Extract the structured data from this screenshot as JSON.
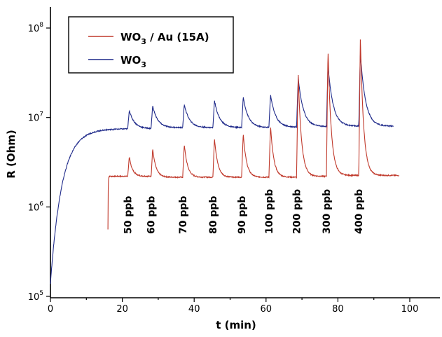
{
  "chart_data": {
    "type": "line",
    "xlabel": "t (min)",
    "ylabel": "R (Ohm)",
    "xlim": [
      0,
      110
    ],
    "ylim": [
      100000,
      600000000
    ],
    "yscale": "log",
    "x_ticks": [
      0,
      20,
      40,
      60,
      80,
      100
    ],
    "y_ticks": [
      {
        "value": 100000,
        "base": "10",
        "exp": "5"
      },
      {
        "value": 1000000,
        "base": "10",
        "exp": "6"
      },
      {
        "value": 10000000,
        "base": "10",
        "exp": "7"
      },
      {
        "value": 100000000,
        "base": "10",
        "exp": "8"
      }
    ],
    "legend": {
      "placement": "top-left",
      "entries": [
        {
          "base": "WO",
          "sub": "3",
          "rest": " / Au (15A)",
          "color": "#c0392b"
        },
        {
          "base": "WO",
          "sub": "3",
          "rest": "",
          "color": "#1f2a8a"
        }
      ]
    },
    "annotations": [
      "50 ppb",
      "60 ppb",
      "70 ppb",
      "80 ppb",
      "90 ppb",
      "100 ppb",
      "200 ppb",
      "300 ppb",
      "400 ppb"
    ],
    "pulse_times": [
      21.5,
      28.0,
      36.8,
      45.2,
      53.2,
      60.8,
      68.5,
      76.8,
      85.8
    ],
    "series": [
      {
        "name": "WO3 / Au (15A)",
        "color": "#c0392b",
        "start_time": 16.0,
        "end_time": 97.0,
        "min_value": 560000,
        "baseline": [
          2200000,
          2150000,
          2150000,
          2150000,
          2150000,
          2150000,
          2200000,
          2250000,
          2250000
        ],
        "peaks": [
          3600000,
          4500000,
          5000000,
          5900000,
          6700000,
          8100000,
          31000000,
          58000000,
          80000000
        ]
      },
      {
        "name": "WO3",
        "color": "#1f2a8a",
        "start_time": 0.0,
        "end_time": 95.5,
        "min_value": 140000,
        "baseline": [
          7500000,
          7700000,
          7700000,
          7700000,
          7700000,
          7800000,
          7900000,
          8000000,
          8000000
        ],
        "peaks": [
          12000000,
          13500000,
          14000000,
          15500000,
          17000000,
          18000000,
          28000000,
          38000000,
          52000000
        ]
      }
    ]
  }
}
